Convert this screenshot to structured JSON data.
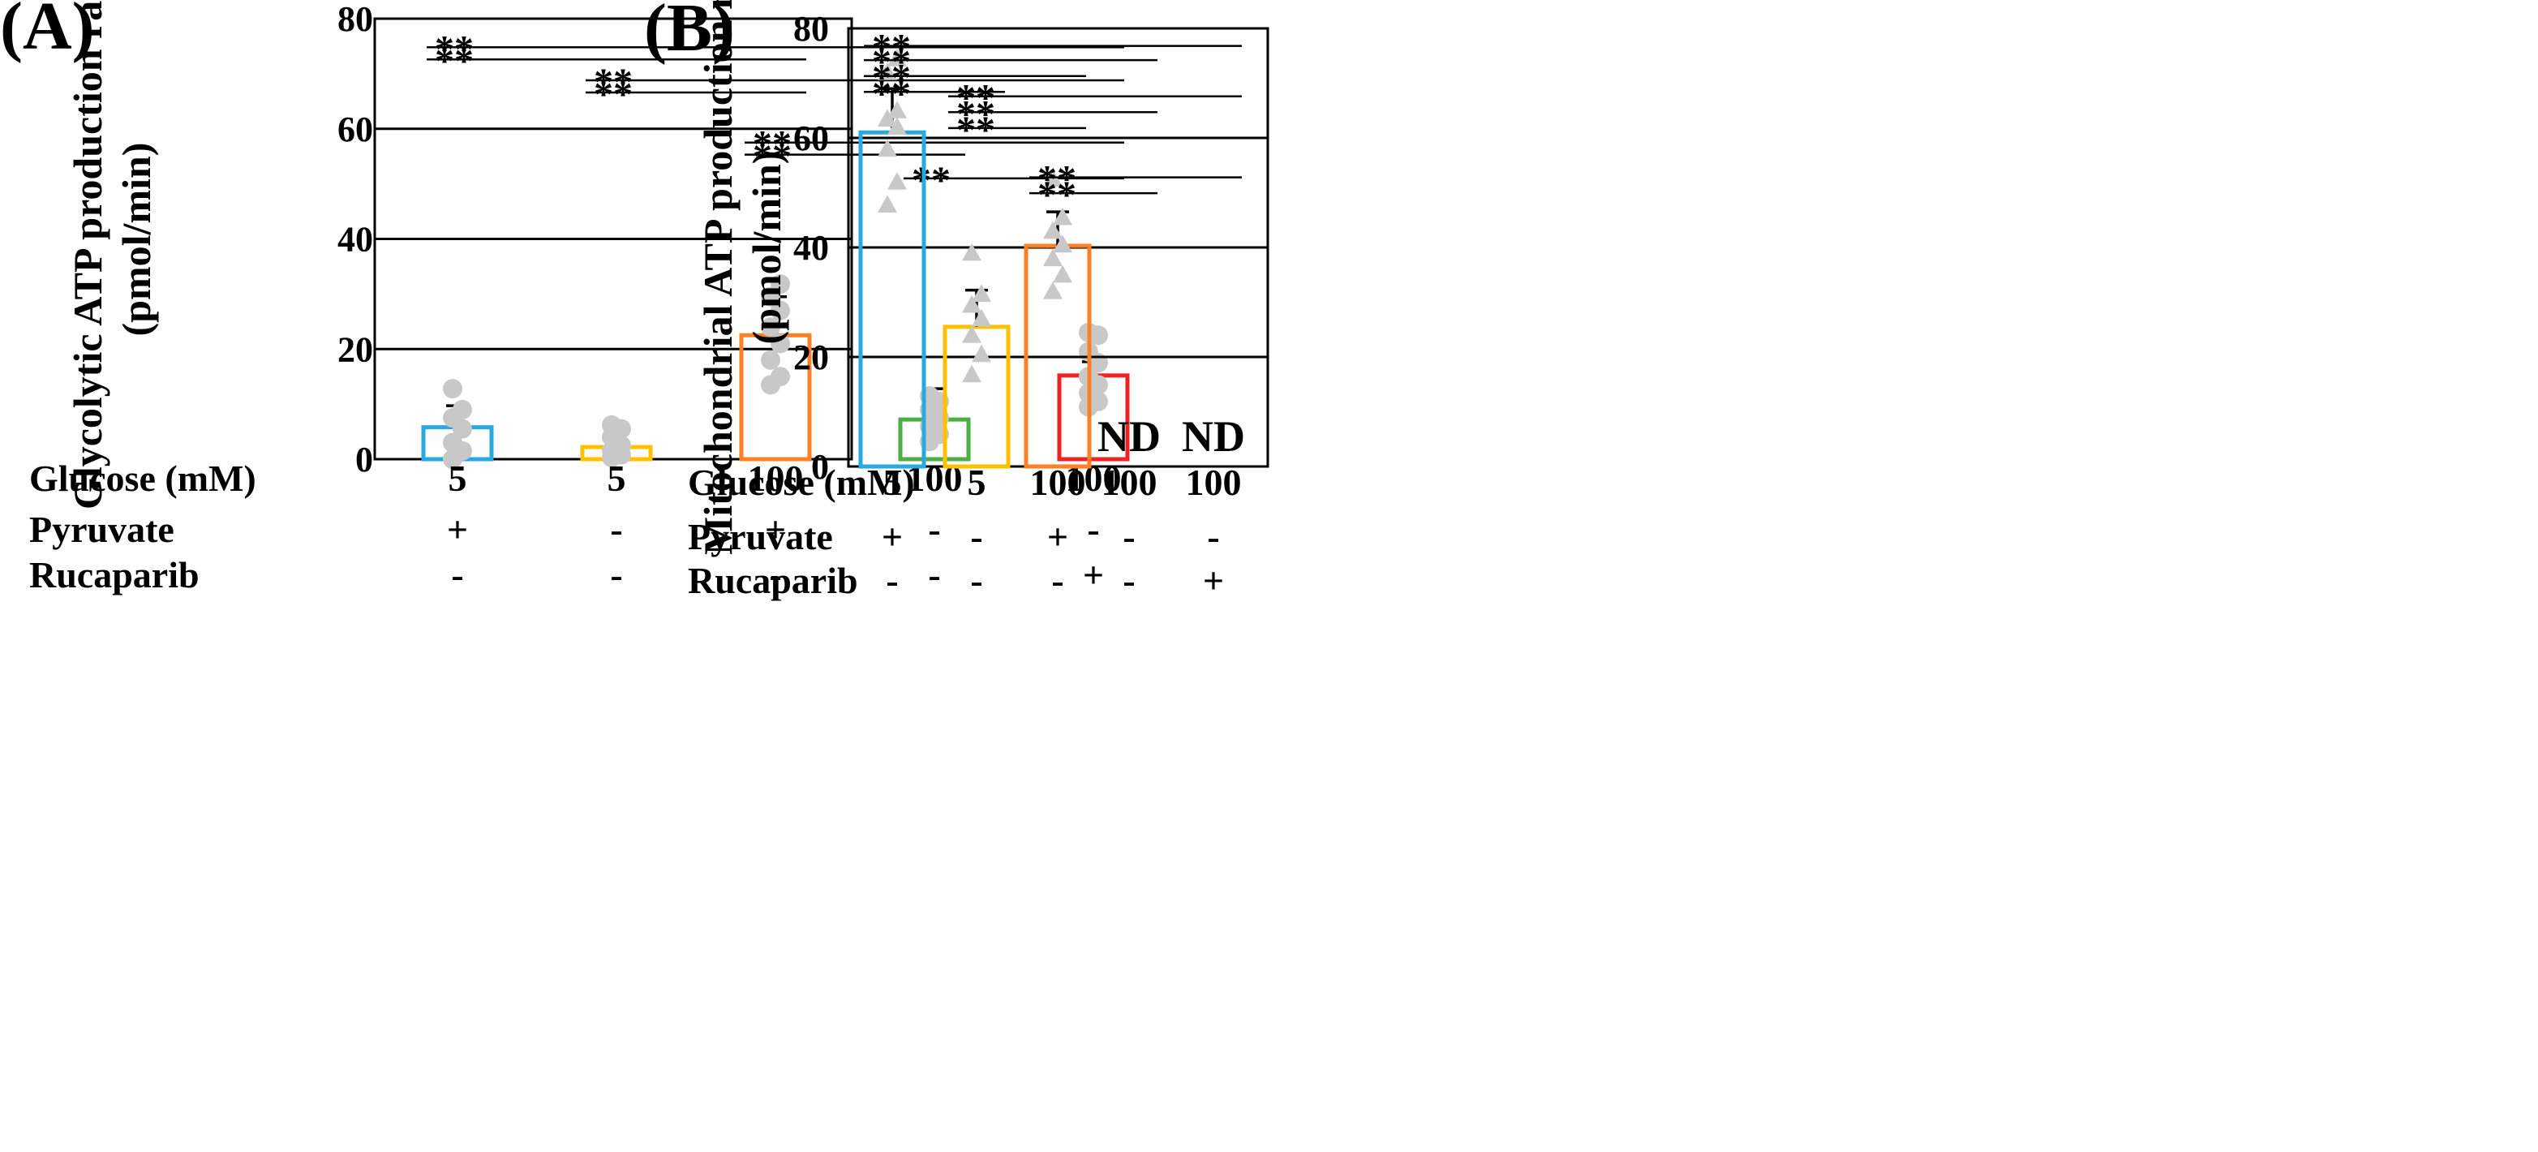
{
  "chart_data": [
    {
      "type": "bar",
      "panel_label": "(A)",
      "ylabel_line1": "Glycolytic ATP production rate",
      "ylabel_line2": "(pmol/min)",
      "ylim": [
        0,
        80
      ],
      "yticks": [
        0,
        20,
        40,
        60,
        80
      ],
      "grid": true,
      "categories": [
        "5 mM Glc + Pyr",
        "5 mM Glc",
        "100 mM Glc + Pyr",
        "100 mM Glc",
        "100 mM Glc + Rucaparib"
      ],
      "values": [
        5.8,
        2.2,
        22.5,
        7.2,
        15.2
      ],
      "errors": [
        3.9,
        2.8,
        7.0,
        5.6,
        2.5
      ],
      "bar_colors": [
        "#29a9e0",
        "#ffc000",
        "#ff7f27",
        "#4cae43",
        "#ee2222"
      ],
      "points_marker": "circle",
      "points": [
        [
          0.0,
          1.5,
          3.0,
          5.5,
          7.5,
          9.0,
          12.8
        ],
        [
          0.3,
          0.8,
          1.5,
          2.5,
          4.0,
          5.5,
          6.2
        ],
        [
          13.5,
          15.0,
          18.0,
          21.0,
          24.0,
          27.0,
          29.5,
          31.8
        ],
        [
          3.2,
          4.5,
          6.0,
          7.5,
          9.0,
          10.5,
          11.5
        ],
        [
          9.5,
          10.5,
          12.0,
          13.5,
          15.0,
          17.5,
          19.5,
          22.5,
          23.0
        ]
      ],
      "significance": [
        {
          "from": 0,
          "to": 4,
          "y": 74.8,
          "label": "**"
        },
        {
          "from": 0,
          "to": 2,
          "y": 72.6,
          "label": "**"
        },
        {
          "from": 1,
          "to": 4,
          "y": 68.8,
          "label": "**"
        },
        {
          "from": 1,
          "to": 2,
          "y": 66.6,
          "label": "**"
        },
        {
          "from": 2,
          "to": 4,
          "y": 57.5,
          "label": "**"
        },
        {
          "from": 2,
          "to": 3,
          "y": 55.3,
          "label": "**"
        },
        {
          "from": 3,
          "to": 4,
          "y": 51.0,
          "label": "**"
        }
      ],
      "nd_label": "",
      "nd_indices": []
    },
    {
      "type": "bar",
      "panel_label": "(B)",
      "ylabel_line1": "Mitochondrial ATP production rate",
      "ylabel_line2": "(pmol/min)",
      "ylim": [
        0,
        80
      ],
      "yticks": [
        0,
        20,
        40,
        60,
        80
      ],
      "grid": true,
      "categories": [
        "5 mM Glc + Pyr",
        "5 mM Glc",
        "100 mM Glc + Pyr",
        "100 mM Glc",
        "100 mM Glc + Rucaparib"
      ],
      "values": [
        61.0,
        25.5,
        40.3,
        null,
        null
      ],
      "errors": [
        8.0,
        6.7,
        6.2,
        null,
        null
      ],
      "bar_colors": [
        "#29a9e0",
        "#ffc000",
        "#ff7f27",
        "#4cae43",
        "#ee2222"
      ],
      "points_marker": "triangle",
      "points": [
        [
          47.8,
          52.0,
          58.0,
          62.0,
          63.5,
          65.0,
          72.0,
          74.5
        ],
        [
          16.8,
          20.5,
          24.0,
          27.0,
          29.5,
          31.5,
          39.0
        ],
        [
          32.0,
          35.0,
          38.0,
          40.5,
          43.0,
          45.5,
          52.5
        ],
        [],
        []
      ],
      "significance": [
        {
          "from": 0,
          "to": 4,
          "y": 76.8,
          "label": "**"
        },
        {
          "from": 0,
          "to": 3,
          "y": 74.2,
          "label": "**"
        },
        {
          "from": 0,
          "to": 2,
          "y": 71.3,
          "label": "**"
        },
        {
          "from": 0,
          "to": 1,
          "y": 68.4,
          "label": "**"
        },
        {
          "from": 1,
          "to": 4,
          "y": 67.6,
          "label": "**"
        },
        {
          "from": 1,
          "to": 3,
          "y": 64.7,
          "label": "**"
        },
        {
          "from": 1,
          "to": 2,
          "y": 61.8,
          "label": "**"
        },
        {
          "from": 2,
          "to": 4,
          "y": 52.8,
          "label": "**"
        },
        {
          "from": 2,
          "to": 3,
          "y": 49.9,
          "label": "**"
        }
      ],
      "nd_label": "ND",
      "nd_indices": [
        3,
        4
      ]
    }
  ],
  "conditions": {
    "rows": [
      {
        "label": "Glucose (mM)",
        "values": [
          "5",
          "5",
          "100",
          "100",
          "100"
        ]
      },
      {
        "label": "Pyruvate",
        "values": [
          "+",
          "-",
          "+",
          "-",
          "-"
        ]
      },
      {
        "label": "Rucaparib",
        "values": [
          "-",
          "-",
          "-",
          "-",
          "+"
        ]
      }
    ]
  },
  "colors": {
    "point_gray": "#c8c8c8",
    "axis": "#000000",
    "error_bar": "#000000"
  }
}
